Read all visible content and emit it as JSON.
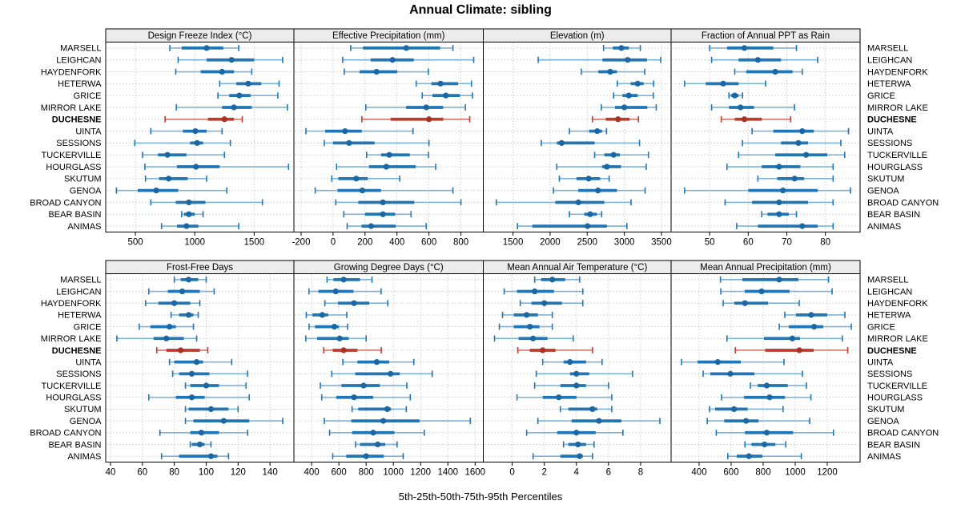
{
  "title": "Annual Climate: sibling",
  "caption": "5th-25th-50th-75th-95th Percentiles",
  "highlight_site": "DUCHESNE",
  "sites": [
    "MARSELL",
    "LEIGHCAN",
    "HAYDENFORK",
    "HETERWA",
    "GRICE",
    "MIRROR LAKE",
    "DUCHESNE",
    "UINTA",
    "SESSIONS",
    "TUCKERVILLE",
    "HOURGLASS",
    "SKUTUM",
    "GENOA",
    "BROAD CANYON",
    "BEAR BASIN",
    "ANIMAS"
  ],
  "colors": {
    "normal_main": "#2176b5",
    "normal_light": "#7eb3d8",
    "normal_dot": "#1a67a3",
    "highlight_main": "#c0392b",
    "highlight_light": "#d5766b",
    "highlight_dot": "#a93226",
    "strip_bg": "#ececec",
    "frame": "#000000",
    "grid_vertical": "#b3b3b3",
    "grid_horizontal": "#c0c8ce",
    "text": "#000000"
  },
  "chart_data": {
    "type": "dot-whisker-trellis",
    "percentile_levels": [
      5,
      25,
      50,
      75,
      95
    ],
    "layout_note": "2 rows x 4 columns of panels; 16 sites per panel; whisker = 5th-95th, thick bar = 25th-75th, dot = 50th percentile",
    "panels": [
      {
        "title": "Design Freeze Index (°C)",
        "xlim": [
          250,
          1835
        ],
        "ticks": [
          500,
          1000,
          1500
        ],
        "series": [
          [
            790,
            890,
            1100,
            1240,
            1370
          ],
          [
            860,
            1100,
            1310,
            1500,
            1740
          ],
          [
            840,
            1050,
            1230,
            1330,
            1480
          ],
          [
            1210,
            1350,
            1450,
            1560,
            1710
          ],
          [
            1195,
            1290,
            1375,
            1470,
            1700
          ],
          [
            845,
            1230,
            1330,
            1480,
            1780
          ],
          [
            750,
            1110,
            1250,
            1330,
            1400
          ],
          [
            630,
            900,
            1005,
            1100,
            1230
          ],
          [
            495,
            960,
            1020,
            1070,
            1300
          ],
          [
            560,
            690,
            770,
            930,
            1250
          ],
          [
            580,
            850,
            1010,
            1210,
            1790
          ],
          [
            585,
            700,
            780,
            940,
            1100
          ],
          [
            340,
            520,
            675,
            860,
            1270
          ],
          [
            630,
            840,
            950,
            1090,
            1570
          ],
          [
            890,
            910,
            950,
            1000,
            1070
          ],
          [
            720,
            850,
            930,
            1030,
            1370
          ]
        ]
      },
      {
        "title": "Effective Precipitation (mm)",
        "xlim": [
          -245,
          940
        ],
        "ticks": [
          -200,
          0,
          200,
          400,
          600,
          800
        ],
        "series": [
          [
            110,
            187,
            458,
            670,
            750
          ],
          [
            60,
            235,
            372,
            505,
            880
          ],
          [
            70,
            166,
            272,
            402,
            596
          ],
          [
            520,
            615,
            672,
            782,
            866
          ],
          [
            558,
            622,
            706,
            794,
            872
          ],
          [
            205,
            457,
            583,
            689,
            828
          ],
          [
            180,
            360,
            600,
            690,
            855
          ],
          [
            -170,
            -50,
            75,
            180,
            500
          ],
          [
            -55,
            0,
            100,
            260,
            600
          ],
          [
            210,
            300,
            352,
            480,
            597
          ],
          [
            22,
            225,
            333,
            517,
            642
          ],
          [
            -8,
            33,
            145,
            217,
            417
          ],
          [
            -112,
            28,
            183,
            300,
            750
          ],
          [
            17,
            158,
            312,
            508,
            800
          ],
          [
            67,
            200,
            312,
            388,
            488
          ],
          [
            88,
            178,
            238,
            392,
            583
          ]
        ]
      },
      {
        "title": "Elevation (m)",
        "xlim": [
          1100,
          3630
        ],
        "ticks": [
          1500,
          2000,
          2500,
          3000,
          3500
        ],
        "series": [
          [
            2720,
            2845,
            2960,
            3060,
            3215
          ],
          [
            1840,
            2705,
            3045,
            3305,
            3490
          ],
          [
            2420,
            2650,
            2810,
            2900,
            3275
          ],
          [
            2905,
            3085,
            3180,
            3260,
            3395
          ],
          [
            2855,
            2975,
            3060,
            3180,
            3390
          ],
          [
            2690,
            2875,
            3000,
            3310,
            3430
          ],
          [
            2570,
            2750,
            2915,
            3070,
            3190
          ],
          [
            2260,
            2525,
            2635,
            2700,
            2760
          ],
          [
            1880,
            2090,
            2155,
            2600,
            3205
          ],
          [
            2600,
            2730,
            2855,
            2940,
            3325
          ],
          [
            2090,
            2700,
            2765,
            2955,
            3295
          ],
          [
            2125,
            2355,
            2520,
            2675,
            2795
          ],
          [
            2045,
            2380,
            2645,
            2900,
            3280
          ],
          [
            1275,
            2070,
            2380,
            2730,
            3090
          ],
          [
            2260,
            2460,
            2540,
            2630,
            2695
          ],
          [
            1560,
            1760,
            2505,
            2765,
            3035
          ]
        ]
      },
      {
        "title": "Fraction of Annual PPT as Rain",
        "xlim": [
          40,
          89
        ],
        "ticks": [
          50,
          60,
          70,
          80
        ],
        "series": [
          [
            50,
            54.5,
            59,
            66.5,
            72.5
          ],
          [
            50.5,
            57.5,
            62.5,
            68.5,
            78
          ],
          [
            56.5,
            59.5,
            67,
            71.5,
            74
          ],
          [
            43.5,
            49,
            53.5,
            57.5,
            64.5
          ],
          [
            55,
            55.5,
            56.5,
            57.5,
            58.5
          ],
          [
            50.5,
            55,
            58,
            61.5,
            72
          ],
          [
            53,
            56.5,
            59,
            63.5,
            71
          ],
          [
            61,
            66.5,
            74,
            77,
            86
          ],
          [
            58.5,
            68.5,
            73,
            75.5,
            84
          ],
          [
            57.5,
            67,
            75,
            80.5,
            85
          ],
          [
            54.5,
            63.5,
            68,
            73.5,
            82
          ],
          [
            62.5,
            67.5,
            72,
            74.5,
            82
          ],
          [
            43.5,
            60,
            69,
            78,
            86.5
          ],
          [
            54,
            61,
            68,
            75.5,
            82
          ],
          [
            63.5,
            65,
            68,
            70.5,
            72.5
          ],
          [
            57,
            62.5,
            74,
            78,
            82
          ]
        ]
      },
      {
        "title": "Frost-Free Days",
        "xlim": [
          37,
          155
        ],
        "ticks": [
          40,
          60,
          80,
          100,
          120,
          140
        ],
        "series": [
          [
            80,
            84,
            89,
            95,
            100
          ],
          [
            64,
            76,
            85,
            96,
            105
          ],
          [
            62,
            70,
            80,
            90,
            96
          ],
          [
            78,
            83,
            89,
            92,
            95
          ],
          [
            58,
            65,
            77,
            81,
            92
          ],
          [
            44,
            67,
            75,
            86,
            94
          ],
          [
            69,
            75,
            84,
            96,
            101
          ],
          [
            77,
            80,
            94,
            98,
            116
          ],
          [
            79,
            83,
            91,
            102,
            126
          ],
          [
            87,
            90,
            100,
            108,
            125
          ],
          [
            64,
            81,
            91,
            99,
            127
          ],
          [
            87,
            89,
            103,
            114,
            120
          ],
          [
            87,
            92,
            111,
            127,
            148
          ],
          [
            71,
            90,
            97,
            108,
            126
          ],
          [
            90,
            91,
            96,
            99,
            103
          ],
          [
            72,
            83,
            103,
            107,
            114
          ]
        ]
      },
      {
        "title": "Growing Degree Days (°C)",
        "xlim": [
          270,
          1660
        ],
        "ticks": [
          400,
          600,
          800,
          1000,
          1200,
          1400,
          1600
        ],
        "series": [
          [
            513,
            560,
            635,
            755,
            843
          ],
          [
            380,
            450,
            577,
            707,
            910
          ],
          [
            497,
            594,
            711,
            823,
            959
          ],
          [
            361,
            406,
            478,
            522,
            658
          ],
          [
            381,
            425,
            567,
            600,
            664
          ],
          [
            357,
            441,
            606,
            672,
            800
          ],
          [
            489,
            555,
            635,
            736,
            911
          ],
          [
            629,
            736,
            878,
            969,
            1150
          ],
          [
            548,
            720,
            979,
            1047,
            1285
          ],
          [
            464,
            619,
            781,
            901,
            1099
          ],
          [
            474,
            581,
            711,
            852,
            1124
          ],
          [
            697,
            742,
            955,
            983,
            1095
          ],
          [
            493,
            691,
            926,
            1192,
            1565
          ],
          [
            532,
            697,
            852,
            1008,
            1227
          ],
          [
            722,
            755,
            885,
            940,
            1027
          ],
          [
            555,
            654,
            800,
            930,
            1072
          ]
        ]
      },
      {
        "title": "Mean Annual Air Temperature (°C)",
        "xlim": [
          -1.8,
          9.9
        ],
        "ticks": [
          0,
          2,
          4,
          6,
          8
        ],
        "series": [
          [
            1.4,
            1.8,
            2.5,
            3.3,
            4.2
          ],
          [
            -0.5,
            0.3,
            1.4,
            2.6,
            4.4
          ],
          [
            0.5,
            1.2,
            2.0,
            3.1,
            4.4
          ],
          [
            -0.6,
            0.1,
            0.9,
            1.6,
            2.5
          ],
          [
            -0.8,
            0.1,
            1.1,
            1.7,
            2.5
          ],
          [
            -1.1,
            0.4,
            1.3,
            2.2,
            3.8
          ],
          [
            0.35,
            1.1,
            1.9,
            2.7,
            5.0
          ],
          [
            1.9,
            3.2,
            3.6,
            4.6,
            5.6
          ],
          [
            1.5,
            3.6,
            4.0,
            4.8,
            7.5
          ],
          [
            1.4,
            3.0,
            4.0,
            4.6,
            6.0
          ],
          [
            0.3,
            1.9,
            2.9,
            4.0,
            6.2
          ],
          [
            3.0,
            3.5,
            5.0,
            5.3,
            6.2
          ],
          [
            1.6,
            3.7,
            5.4,
            6.8,
            9.2
          ],
          [
            0.9,
            2.8,
            4.0,
            5.2,
            6.9
          ],
          [
            3.2,
            3.5,
            4.1,
            4.6,
            5.1
          ],
          [
            1.3,
            3.0,
            4.2,
            4.4,
            5.0
          ]
        ]
      },
      {
        "title": "Mean Annual Precipitation (mm)",
        "xlim": [
          225,
          1405
        ],
        "ticks": [
          400,
          600,
          800,
          1000,
          1200
        ],
        "series": [
          [
            533,
            670,
            900,
            1020,
            1208
          ],
          [
            535,
            685,
            790,
            965,
            1230
          ],
          [
            550,
            620,
            686,
            830,
            1025
          ],
          [
            935,
            1005,
            1100,
            1200,
            1310
          ],
          [
            900,
            960,
            1118,
            1175,
            1350
          ],
          [
            574,
            805,
            982,
            1030,
            1294
          ],
          [
            626,
            812,
            1026,
            1115,
            1328
          ],
          [
            290,
            390,
            516,
            660,
            930
          ],
          [
            425,
            470,
            595,
            745,
            1045
          ],
          [
            720,
            766,
            822,
            953,
            1070
          ],
          [
            540,
            680,
            840,
            936,
            1098
          ],
          [
            465,
            500,
            618,
            703,
            924
          ],
          [
            451,
            557,
            693,
            771,
            1090
          ],
          [
            507,
            686,
            822,
            987,
            1239
          ],
          [
            686,
            727,
            808,
            876,
            941
          ],
          [
            579,
            635,
            711,
            795,
            1038
          ]
        ]
      }
    ]
  }
}
